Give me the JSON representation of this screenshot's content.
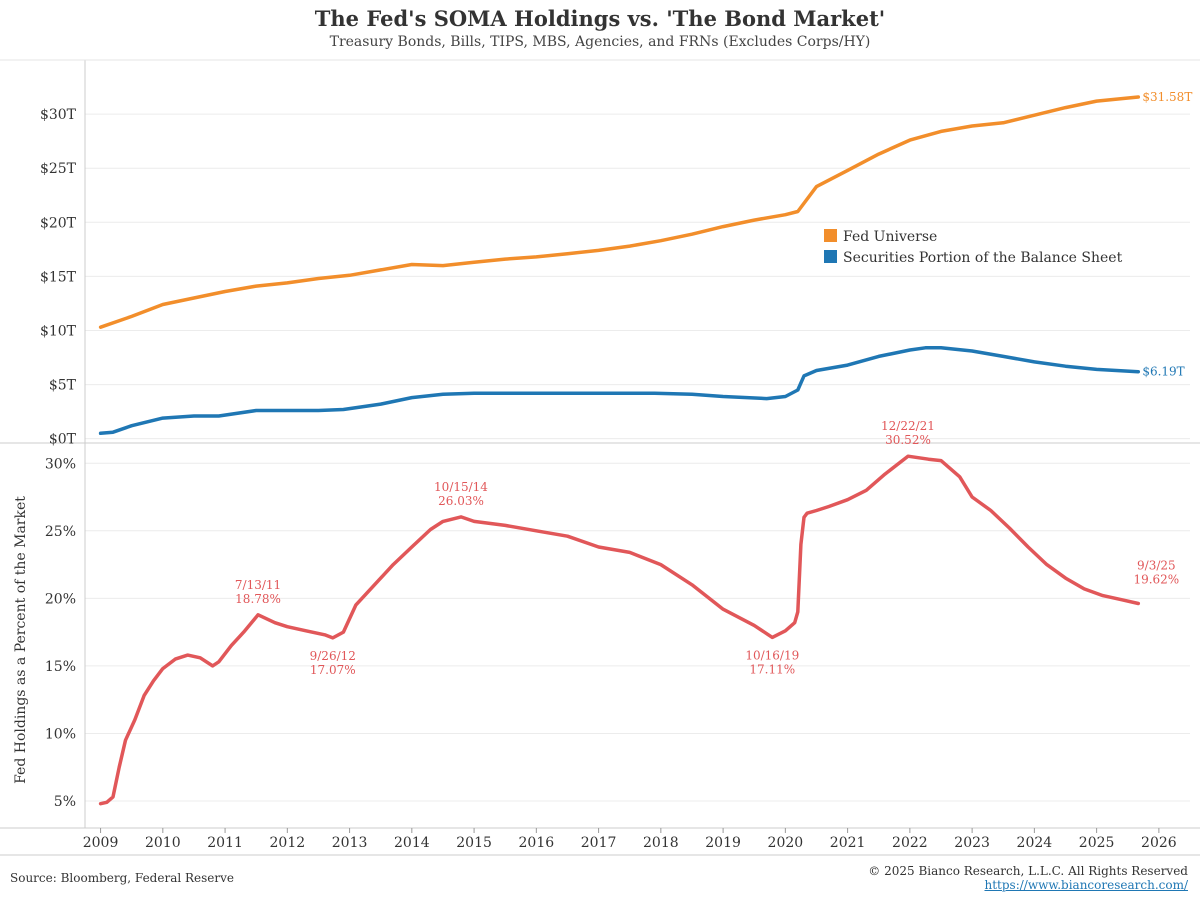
{
  "header": {
    "title": "The Fed's SOMA Holdings vs. 'The Bond Market'",
    "subtitle": "Treasury Bonds, Bills, TIPS, MBS, Agencies, and FRNs (Excludes Corps/HY)"
  },
  "footer": {
    "source": "Source: Bloomberg, Federal Reserve",
    "copyright": "© 2025 Bianco Research, L.L.C. All Rights Reserved",
    "link": "https://www.biancoresearch.com/"
  },
  "colors": {
    "fed_universe": "#f28e2b",
    "securities": "#1f77b4",
    "percent": "#e15759",
    "grid": "#ececec",
    "axis": "#cccccc"
  },
  "chart_data": [
    {
      "type": "line",
      "xlabel": "",
      "ylabel": "",
      "xlim": [
        2008.75,
        2026.5
      ],
      "ylim": [
        -0.4,
        35
      ],
      "yticks": [
        0,
        5,
        10,
        15,
        20,
        25,
        30
      ],
      "ytick_labels": [
        "$0T",
        "$5T",
        "$10T",
        "$15T",
        "$20T",
        "$25T",
        "$30T"
      ],
      "grid": true,
      "legend_position": "center-right",
      "legend": [
        "Fed Universe",
        "Securities Portion of the Balance Sheet"
      ],
      "series": [
        {
          "name": "Fed Universe",
          "color": "#f28e2b",
          "end_label": "$31.58T",
          "x": [
            2009.0,
            2009.5,
            2010.0,
            2010.5,
            2011.0,
            2011.5,
            2012.0,
            2012.5,
            2013.0,
            2013.5,
            2014.0,
            2014.5,
            2015.0,
            2015.5,
            2016.0,
            2016.5,
            2017.0,
            2017.5,
            2018.0,
            2018.5,
            2019.0,
            2019.5,
            2020.0,
            2020.2,
            2020.5,
            2021.0,
            2021.5,
            2022.0,
            2022.5,
            2023.0,
            2023.5,
            2024.0,
            2024.5,
            2025.0,
            2025.67
          ],
          "values": [
            10.3,
            11.3,
            12.4,
            13.0,
            13.6,
            14.1,
            14.4,
            14.8,
            15.1,
            15.6,
            16.1,
            16.0,
            16.3,
            16.6,
            16.8,
            17.1,
            17.4,
            17.8,
            18.3,
            18.9,
            19.6,
            20.2,
            20.7,
            21.0,
            23.3,
            24.8,
            26.3,
            27.6,
            28.4,
            28.9,
            29.2,
            29.9,
            30.6,
            31.2,
            31.58
          ]
        },
        {
          "name": "Securities Portion of the Balance Sheet",
          "color": "#1f77b4",
          "end_label": "$6.19T",
          "x": [
            2009.0,
            2009.2,
            2009.5,
            2010.0,
            2010.5,
            2010.9,
            2011.5,
            2012.0,
            2012.5,
            2012.9,
            2013.5,
            2014.0,
            2014.5,
            2015.0,
            2016.0,
            2017.0,
            2017.9,
            2018.5,
            2019.0,
            2019.7,
            2020.0,
            2020.2,
            2020.3,
            2020.5,
            2021.0,
            2021.5,
            2022.0,
            2022.25,
            2022.5,
            2023.0,
            2023.5,
            2024.0,
            2024.5,
            2025.0,
            2025.67
          ],
          "values": [
            0.5,
            0.6,
            1.2,
            1.9,
            2.1,
            2.1,
            2.6,
            2.6,
            2.6,
            2.7,
            3.2,
            3.8,
            4.1,
            4.2,
            4.2,
            4.2,
            4.2,
            4.1,
            3.9,
            3.7,
            3.9,
            4.5,
            5.8,
            6.3,
            6.8,
            7.6,
            8.2,
            8.4,
            8.4,
            8.1,
            7.6,
            7.1,
            6.7,
            6.4,
            6.19
          ]
        }
      ]
    },
    {
      "type": "line",
      "xlabel": "",
      "ylabel": "Fed Holdings as a Percent of the Market",
      "xlim": [
        2008.75,
        2026.5
      ],
      "ylim": [
        3,
        31.5
      ],
      "yticks": [
        5,
        10,
        15,
        20,
        25,
        30
      ],
      "ytick_labels": [
        "5%",
        "10%",
        "15%",
        "20%",
        "25%",
        "30%"
      ],
      "xticks": [
        2009,
        2010,
        2011,
        2012,
        2013,
        2014,
        2015,
        2016,
        2017,
        2018,
        2019,
        2020,
        2021,
        2022,
        2023,
        2024,
        2025,
        2026
      ],
      "xtick_labels": [
        "2009",
        "2010",
        "2011",
        "2012",
        "2013",
        "2014",
        "2015",
        "2016",
        "2017",
        "2018",
        "2019",
        "2020",
        "2021",
        "2022",
        "2023",
        "2024",
        "2025",
        "2026"
      ],
      "grid": true,
      "series": [
        {
          "color": "#e15759",
          "x": [
            2009.0,
            2009.1,
            2009.2,
            2009.3,
            2009.4,
            2009.55,
            2009.7,
            2009.85,
            2010.0,
            2010.2,
            2010.4,
            2010.6,
            2010.8,
            2010.9,
            2011.1,
            2011.3,
            2011.53,
            2011.8,
            2012.0,
            2012.3,
            2012.6,
            2012.73,
            2012.9,
            2013.1,
            2013.4,
            2013.7,
            2014.0,
            2014.3,
            2014.5,
            2014.79,
            2015.0,
            2015.5,
            2016.0,
            2016.5,
            2017.0,
            2017.5,
            2018.0,
            2018.5,
            2019.0,
            2019.5,
            2019.79,
            2020.0,
            2020.15,
            2020.2,
            2020.25,
            2020.3,
            2020.35,
            2020.5,
            2020.7,
            2021.0,
            2021.3,
            2021.6,
            2021.97,
            2022.3,
            2022.5,
            2022.8,
            2023.0,
            2023.3,
            2023.6,
            2023.9,
            2024.2,
            2024.5,
            2024.8,
            2025.1,
            2025.4,
            2025.67
          ],
          "values": [
            4.8,
            4.9,
            5.3,
            7.5,
            9.5,
            11.0,
            12.8,
            13.9,
            14.8,
            15.5,
            15.8,
            15.6,
            15.0,
            15.3,
            16.5,
            17.5,
            18.78,
            18.2,
            17.9,
            17.6,
            17.3,
            17.07,
            17.5,
            19.5,
            21.0,
            22.5,
            23.8,
            25.1,
            25.7,
            26.03,
            25.7,
            25.4,
            25.0,
            24.6,
            23.8,
            23.4,
            22.5,
            21.0,
            19.2,
            18.0,
            17.11,
            17.6,
            18.2,
            19.0,
            24.0,
            26.0,
            26.3,
            26.5,
            26.8,
            27.3,
            28.0,
            29.2,
            30.52,
            30.3,
            30.2,
            29.0,
            27.5,
            26.5,
            25.2,
            23.8,
            22.5,
            21.5,
            20.7,
            20.2,
            19.9,
            19.62
          ]
        }
      ],
      "annotations": [
        {
          "date": "7/13/11",
          "value": "18.78%",
          "x": 2011.53,
          "y": 18.78,
          "pos": "above"
        },
        {
          "date": "9/26/12",
          "value": "17.07%",
          "x": 2012.73,
          "y": 17.07,
          "pos": "below"
        },
        {
          "date": "10/15/14",
          "value": "26.03%",
          "x": 2014.79,
          "y": 26.03,
          "pos": "above"
        },
        {
          "date": "10/16/19",
          "value": "17.11%",
          "x": 2019.79,
          "y": 17.11,
          "pos": "below"
        },
        {
          "date": "12/22/21",
          "value": "30.52%",
          "x": 2021.97,
          "y": 30.52,
          "pos": "above"
        },
        {
          "date": "9/3/25",
          "value": "19.62%",
          "x": 2025.67,
          "y": 19.62,
          "pos": "above-right"
        }
      ]
    }
  ]
}
